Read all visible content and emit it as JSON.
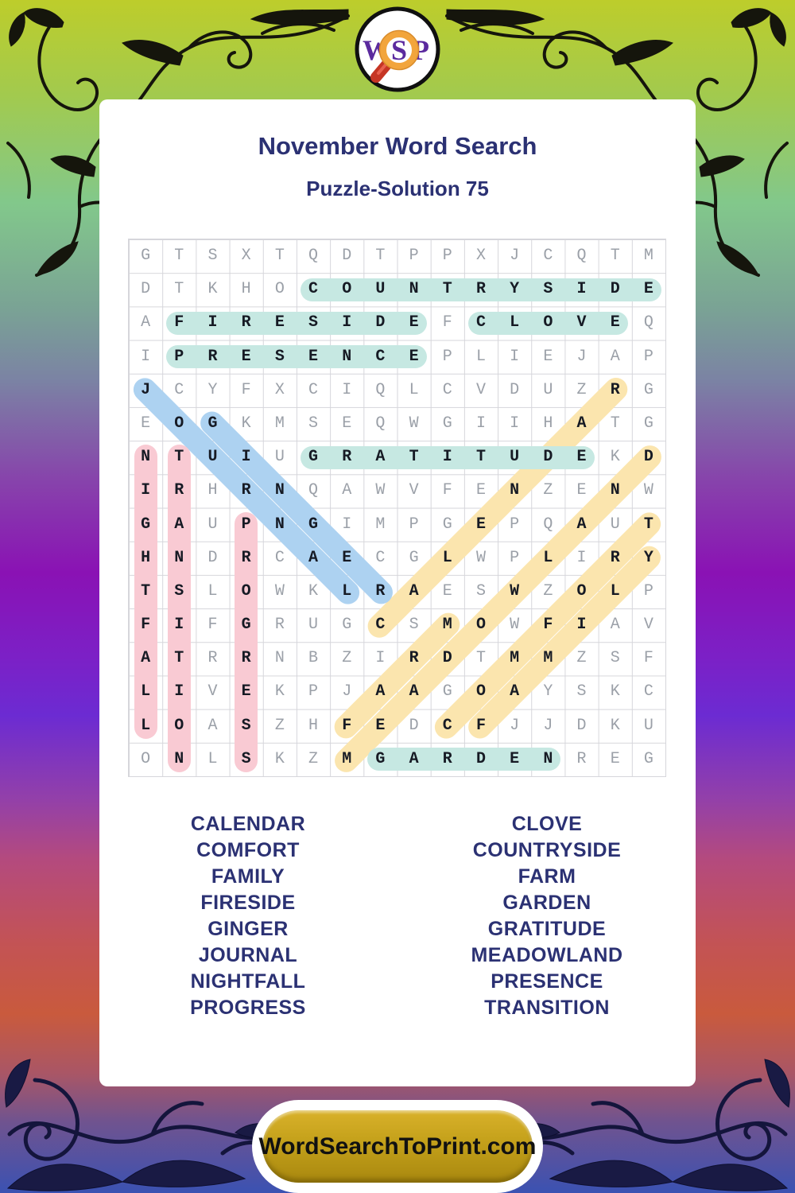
{
  "header": {
    "title": "November Word Search",
    "subtitle": "Puzzle-Solution 75"
  },
  "logo": {
    "letters": [
      "W",
      "S",
      "P"
    ]
  },
  "grid": {
    "size": 16,
    "rows": [
      "GTSXTQDTPPXJCQTM",
      "DTKHOCOUNTRYSIDE",
      "AFIRESIDEFCLOVEQ",
      "IPRESENCEPLIEJAP",
      "JCYFXCIQLCVDUZRG",
      "EOGKMSEQWGIIHATG",
      "NTUIUGRATITUDEKD",
      "IRHRNQAWVFENZENW",
      "GAUPNGIMPGEPQAUT",
      "HNDRCAECGLWPLIRY",
      "TSLOWKLRAESWZOLP",
      "FIFGRUGCSMOWFIAV",
      "ATRRNBZIRDTMMZSF",
      "LIVEKPJAAGOAYSKC",
      "LOASZHFEDCFJJDKU",
      "ONLSKZMGARDENREG"
    ],
    "placements": [
      {
        "word": "CALENDAR",
        "row": 12,
        "col": 8,
        "dir": "ur",
        "color": "yellow"
      },
      {
        "word": "MEADOWLAND",
        "row": 16,
        "col": 7,
        "dir": "ur",
        "color": "yellow"
      },
      {
        "word": "FARM",
        "row": 15,
        "col": 7,
        "dir": "ur",
        "color": "yellow"
      },
      {
        "word": "COMFORT",
        "row": 15,
        "col": 10,
        "dir": "ur",
        "color": "yellow"
      },
      {
        "word": "FAMILY",
        "row": 15,
        "col": 11,
        "dir": "ur",
        "color": "yellow"
      },
      {
        "word": "JOURNAL",
        "row": 5,
        "col": 1,
        "dir": "dr",
        "color": "blue"
      },
      {
        "word": "GINGER",
        "row": 6,
        "col": 3,
        "dir": "dr",
        "color": "blue"
      },
      {
        "word": "NIGHTFALL",
        "row": 7,
        "col": 1,
        "dir": "v",
        "color": "pink"
      },
      {
        "word": "TRANSITION",
        "row": 7,
        "col": 2,
        "dir": "v",
        "color": "pink"
      },
      {
        "word": "PROGRESS",
        "row": 9,
        "col": 4,
        "dir": "v",
        "color": "pink"
      },
      {
        "word": "COUNTRYSIDE",
        "row": 2,
        "col": 6,
        "dir": "h",
        "color": "teal"
      },
      {
        "word": "FIRESIDE",
        "row": 3,
        "col": 2,
        "dir": "h",
        "color": "teal"
      },
      {
        "word": "CLOVE",
        "row": 3,
        "col": 11,
        "dir": "h",
        "color": "teal"
      },
      {
        "word": "PRESENCE",
        "row": 4,
        "col": 2,
        "dir": "h",
        "color": "teal"
      },
      {
        "word": "GRATITUDE",
        "row": 7,
        "col": 6,
        "dir": "h",
        "color": "teal"
      },
      {
        "word": "GARDEN",
        "row": 16,
        "col": 8,
        "dir": "h",
        "color": "teal"
      }
    ]
  },
  "word_list": {
    "left": [
      "CALENDAR",
      "COMFORT",
      "FAMILY",
      "FIRESIDE",
      "GINGER",
      "JOURNAL",
      "NIGHTFALL",
      "PROGRESS"
    ],
    "right": [
      "CLOVE",
      "COUNTRYSIDE",
      "FARM",
      "GARDEN",
      "GRATITUDE",
      "MEADOWLAND",
      "PRESENCE",
      "TRANSITION"
    ]
  },
  "footer": {
    "site_label": "WordSearchToPrint.com"
  },
  "colors": {
    "accent_navy": "#2b3173",
    "filler_letter": "#9ba0a8",
    "solution_letter": "#161a24",
    "button_gold": "#c3a01a",
    "logo_purple": "#5b2a9e",
    "logo_orange": "#f2a53c",
    "logo_red": "#c63524",
    "highlights": {
      "teal": "#c6e8e2",
      "pink": "#f9cad3",
      "blue": "#add2f1",
      "yellow": "#fbe5ae"
    }
  }
}
